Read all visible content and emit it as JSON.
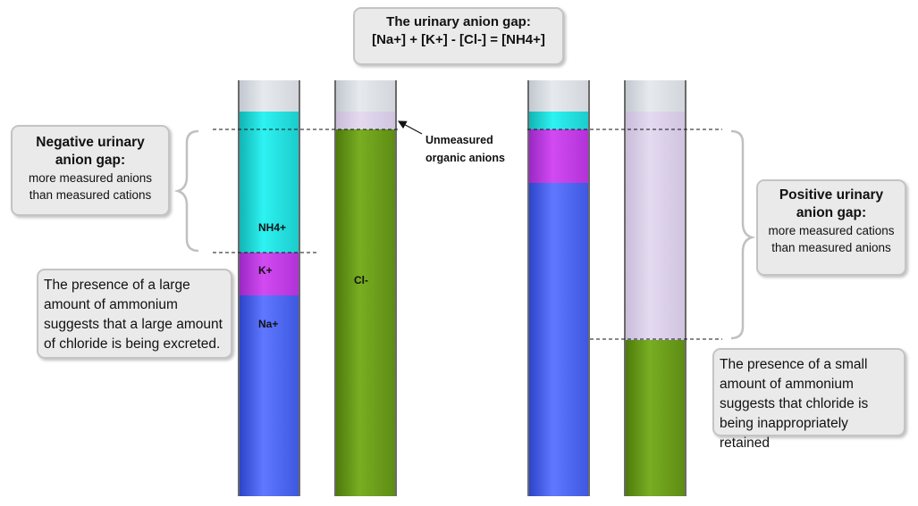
{
  "title": {
    "line1": "The urinary anion gap:",
    "line2": "[Na+] + [K+] - [Cl-] = [NH4+]"
  },
  "negative_gap": {
    "heading_line1": "Negative urinary",
    "heading_line2": "anion gap:",
    "sub_line1": "more measured anions",
    "sub_line2": "than measured cations"
  },
  "positive_gap": {
    "heading_line1": "Positive urinary",
    "heading_line2": "anion gap:",
    "sub_line1": "more measured cations",
    "sub_line2": "than measured anions"
  },
  "note_left": {
    "line1": "The presence of a large",
    "line2": "amount of ammonium",
    "line3": "suggests that a large amount",
    "line4": "of chloride is being excreted."
  },
  "note_right": {
    "line1": "The presence of a small",
    "line2": "amount of ammonium",
    "line3": "suggests that chloride is",
    "line4": "being inappropriately retained"
  },
  "unmeasured_annotation": {
    "line1": "Unmeasured",
    "line2": "organic anions"
  },
  "segment_labels": {
    "nh4": "NH4+",
    "k": "K+",
    "na": "Na+",
    "cl": "Cl-"
  },
  "colors": {
    "nh4": "#2ef2f2",
    "k": "#d24af2",
    "na": "#5f78ff",
    "cl": "#78ae22",
    "unmeasured": "#e4daf0",
    "headspace": "#e6eaee"
  }
}
